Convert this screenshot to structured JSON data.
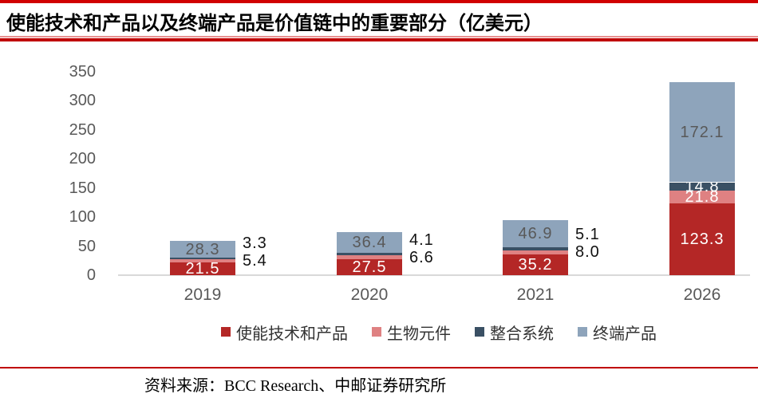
{
  "page": {
    "title": "使能技术和产品以及终端产品是价值链中的重要部分（亿美元）",
    "source_note": "资料来源：BCC Research、中邮证券研究所",
    "accent_red": "#c00000"
  },
  "chart_data": {
    "type": "bar",
    "stacked": true,
    "title": "使能技术和产品以及终端产品是价值链中的重要部分（亿美元）",
    "unit": "亿美元",
    "categories": [
      "2019",
      "2020",
      "2021",
      "2026"
    ],
    "series": [
      {
        "name": "使能技术和产品",
        "color": "#b42726",
        "label_color": "#ffffff",
        "values": [
          21.5,
          27.5,
          35.2,
          123.3
        ]
      },
      {
        "name": "生物元件",
        "color": "#df8182",
        "label_color": "#ffffff",
        "values": [
          5.4,
          6.6,
          8.0,
          21.8
        ]
      },
      {
        "name": "整合系统",
        "color": "#3a5064",
        "label_color": "#ffffff",
        "values": [
          3.3,
          4.1,
          5.1,
          14.8
        ]
      },
      {
        "name": "终端产品",
        "color": "#8ea4bb",
        "label_color": "#595959",
        "values": [
          28.3,
          36.4,
          46.9,
          172.1
        ]
      }
    ],
    "y_ticks": [
      0,
      50,
      100,
      150,
      200,
      250,
      300,
      350
    ],
    "ylim": [
      0,
      350
    ],
    "grid": false,
    "legend_position": "bottom"
  }
}
